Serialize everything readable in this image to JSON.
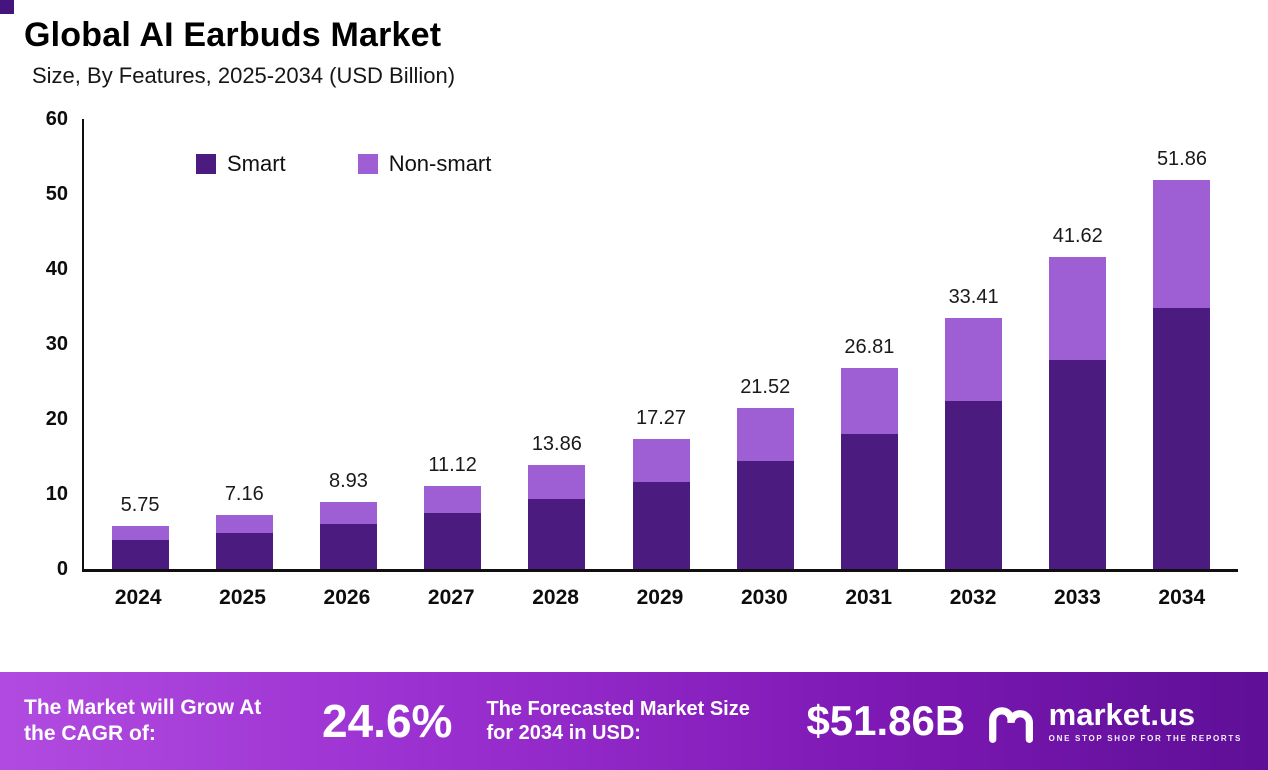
{
  "page": {
    "title": "Global AI Earbuds Market",
    "subtitle": "Size, By Features, 2025-2034 (USD Billion)"
  },
  "chart_data": {
    "type": "bar",
    "stacked": true,
    "title": "Global AI Earbuds Market Size, By Features, 2025-2034 (USD Billion)",
    "categories": [
      "2024",
      "2025",
      "2026",
      "2027",
      "2028",
      "2029",
      "2030",
      "2031",
      "2032",
      "2033",
      "2034"
    ],
    "series": [
      {
        "name": "Smart",
        "color": "#4b1b7f",
        "values": [
          3.85,
          4.8,
          5.98,
          7.45,
          9.28,
          11.57,
          14.42,
          17.96,
          22.38,
          27.89,
          34.75
        ]
      },
      {
        "name": "Non-smart",
        "color": "#9d5fd3",
        "values": [
          1.9,
          2.36,
          2.95,
          3.67,
          4.58,
          5.7,
          7.1,
          8.85,
          11.03,
          13.73,
          17.11
        ]
      }
    ],
    "totals": [
      5.75,
      7.16,
      8.93,
      11.12,
      13.86,
      17.27,
      21.52,
      26.81,
      33.41,
      41.62,
      51.86
    ],
    "total_labels": [
      "5.75",
      "7.16",
      "8.93",
      "11.12",
      "13.86",
      "17.27",
      "21.52",
      "26.81",
      "33.41",
      "41.62",
      "51.86"
    ],
    "xlabel": "",
    "ylabel": "",
    "ylim": [
      0,
      60
    ],
    "yticks": [
      0,
      10,
      20,
      30,
      40,
      50,
      60
    ],
    "grid": false,
    "legend_position": "top-left-inside"
  },
  "footer": {
    "cagr_label": "The Market will Grow At the CAGR of:",
    "cagr_value": "24.6%",
    "forecast_label": "The Forecasted Market Size for 2034 in USD:",
    "forecast_value": "$51.86B",
    "brand": "market.us",
    "brand_tagline": "ONE STOP SHOP FOR THE REPORTS"
  },
  "colors": {
    "smart": "#4b1b7f",
    "non_smart": "#9d5fd3",
    "axis": "#0f0f0f",
    "banner_gradient_start": "#b14be0",
    "banner_gradient_end": "#5e0f97",
    "corner_accent": "#44157d"
  }
}
